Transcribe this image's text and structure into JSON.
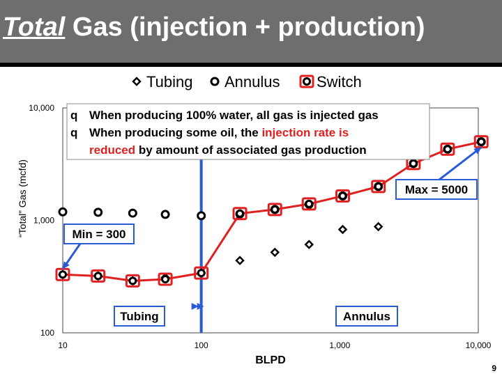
{
  "slide": {
    "title_highlight": "Total",
    "title_rest": "Gas (injection + production)",
    "page_number": "9"
  },
  "legend": [
    {
      "label": "Tubing",
      "marker": "diamond"
    },
    {
      "label": "Annulus",
      "marker": "circle"
    },
    {
      "label": "Switch",
      "marker": "square-circle"
    }
  ],
  "notes": [
    {
      "bullet": "q",
      "parts": [
        {
          "text": "When producing 100% water, all gas is injected gas",
          "color": "#000000"
        }
      ]
    },
    {
      "bullet": "q",
      "parts": [
        {
          "text": "When producing some oil, the ",
          "color": "#000000"
        },
        {
          "text": "injection rate is",
          "color": "#e02020"
        }
      ]
    },
    {
      "bullet": "",
      "parts": [
        {
          "text": "reduced",
          "color": "#e02020"
        },
        {
          "text": " by amount of associated gas production",
          "color": "#000000"
        }
      ]
    }
  ],
  "callouts": {
    "max": "Max = 5000",
    "min": "Min = 300",
    "tubing": "Tubing",
    "annulus": "Annulus"
  },
  "colors": {
    "title_bar": "#6e6e6e",
    "switch_line": "#e02020",
    "callout_fill": "#ffffff",
    "callout_border": "#2a5bd7",
    "divider_line": "#2a5bd7"
  },
  "chart_data": {
    "type": "scatter",
    "title": "",
    "xlabel": "BLPD",
    "ylabel": "“Total” Gas (mcfd)",
    "x_scale": "log",
    "y_scale": "log",
    "xlim": [
      10,
      10000
    ],
    "ylim": [
      100,
      10000
    ],
    "x_ticks": [
      {
        "value": 10,
        "label": "10"
      },
      {
        "value": 100,
        "label": "100"
      },
      {
        "value": 1000,
        "label": "1,000"
      },
      {
        "value": 10000,
        "label": "10,000"
      }
    ],
    "y_ticks": [
      {
        "value": 100,
        "label": "100"
      },
      {
        "value": 1000,
        "label": "1,000"
      },
      {
        "value": 10000,
        "label": "10,000"
      }
    ],
    "grid": false,
    "switch_x": 100,
    "series": [
      {
        "name": "Tubing",
        "marker": "diamond",
        "points": [
          [
            10,
            330
          ],
          [
            18,
            320
          ],
          [
            32,
            290
          ],
          [
            55,
            310
          ],
          [
            100,
            340
          ],
          [
            190,
            440
          ],
          [
            340,
            520
          ],
          [
            600,
            610
          ],
          [
            1050,
            830
          ],
          [
            1900,
            880
          ]
        ]
      },
      {
        "name": "Annulus",
        "marker": "circle",
        "points": [
          [
            10,
            1190
          ],
          [
            18,
            1180
          ],
          [
            32,
            1160
          ],
          [
            55,
            1130
          ],
          [
            100,
            1100
          ],
          [
            190,
            1140
          ],
          [
            340,
            1250
          ],
          [
            600,
            1390
          ],
          [
            1050,
            1650
          ],
          [
            1900,
            2000
          ],
          [
            3400,
            3200
          ],
          [
            6000,
            4300
          ],
          [
            10500,
            5000
          ]
        ]
      },
      {
        "name": "Switch",
        "marker": "square-circle",
        "points": [
          [
            10,
            330
          ],
          [
            18,
            320
          ],
          [
            32,
            290
          ],
          [
            55,
            300
          ],
          [
            100,
            340
          ],
          [
            190,
            1150
          ],
          [
            340,
            1250
          ],
          [
            600,
            1400
          ],
          [
            1050,
            1650
          ],
          [
            1900,
            2000
          ],
          [
            3400,
            3200
          ],
          [
            6000,
            4300
          ],
          [
            10500,
            5000
          ]
        ]
      }
    ]
  }
}
